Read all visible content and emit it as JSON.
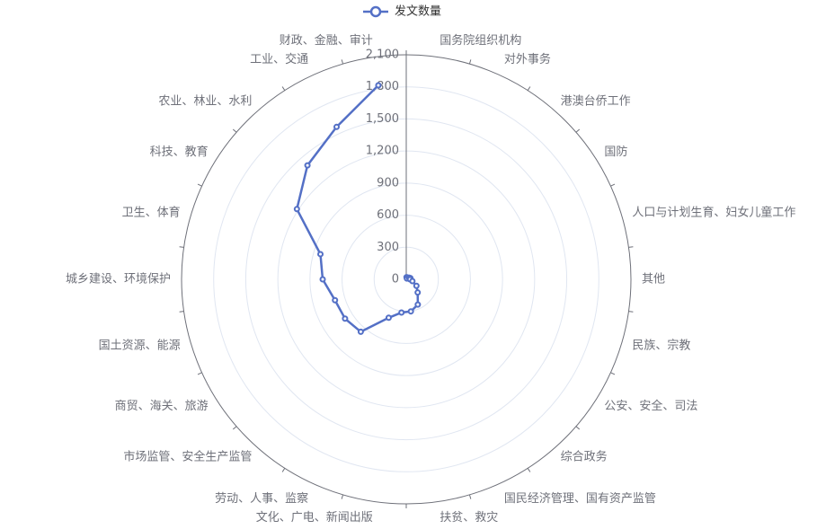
{
  "chart_data": {
    "type": "polar-line",
    "categories": [
      "国务院组织机构",
      "对外事务",
      "港澳台侨工作",
      "国防",
      "人口与计划生育、妇女儿童工作",
      "其他",
      "民族、宗教",
      "公安、安全、司法",
      "综合政务",
      "国民经济管理、国有资产监管",
      "扶贫、救灾",
      "文化、广电、新闻出版",
      "劳动、人事、监察",
      "市场监管、安全生产监管",
      "商贸、海关、旅游",
      "国土资源、能源",
      "城乡建设、环境保护",
      "卫生、体育",
      "科技、教育",
      "农业、林业、水利",
      "工业、交通",
      "财政、金融、审计"
    ],
    "series": [
      {
        "name": "发文数量",
        "color": "#5470c6",
        "values": [
          20,
          15,
          10,
          30,
          40,
          35,
          60,
          113,
          163,
          260,
          303,
          314,
          395,
          649,
          680,
          694,
          781,
          836,
          1215,
          1410,
          1567,
          1833
        ]
      }
    ],
    "ylim": [
      0,
      2100
    ],
    "yticks": [
      0,
      300,
      600,
      900,
      {
        "value": 1200,
        "label": "1,200"
      },
      {
        "value": 1500,
        "label": "1,500"
      },
      {
        "value": 1800,
        "label": "1,800"
      },
      {
        "value": 2100,
        "label": "2,100"
      }
    ],
    "grid": true
  }
}
